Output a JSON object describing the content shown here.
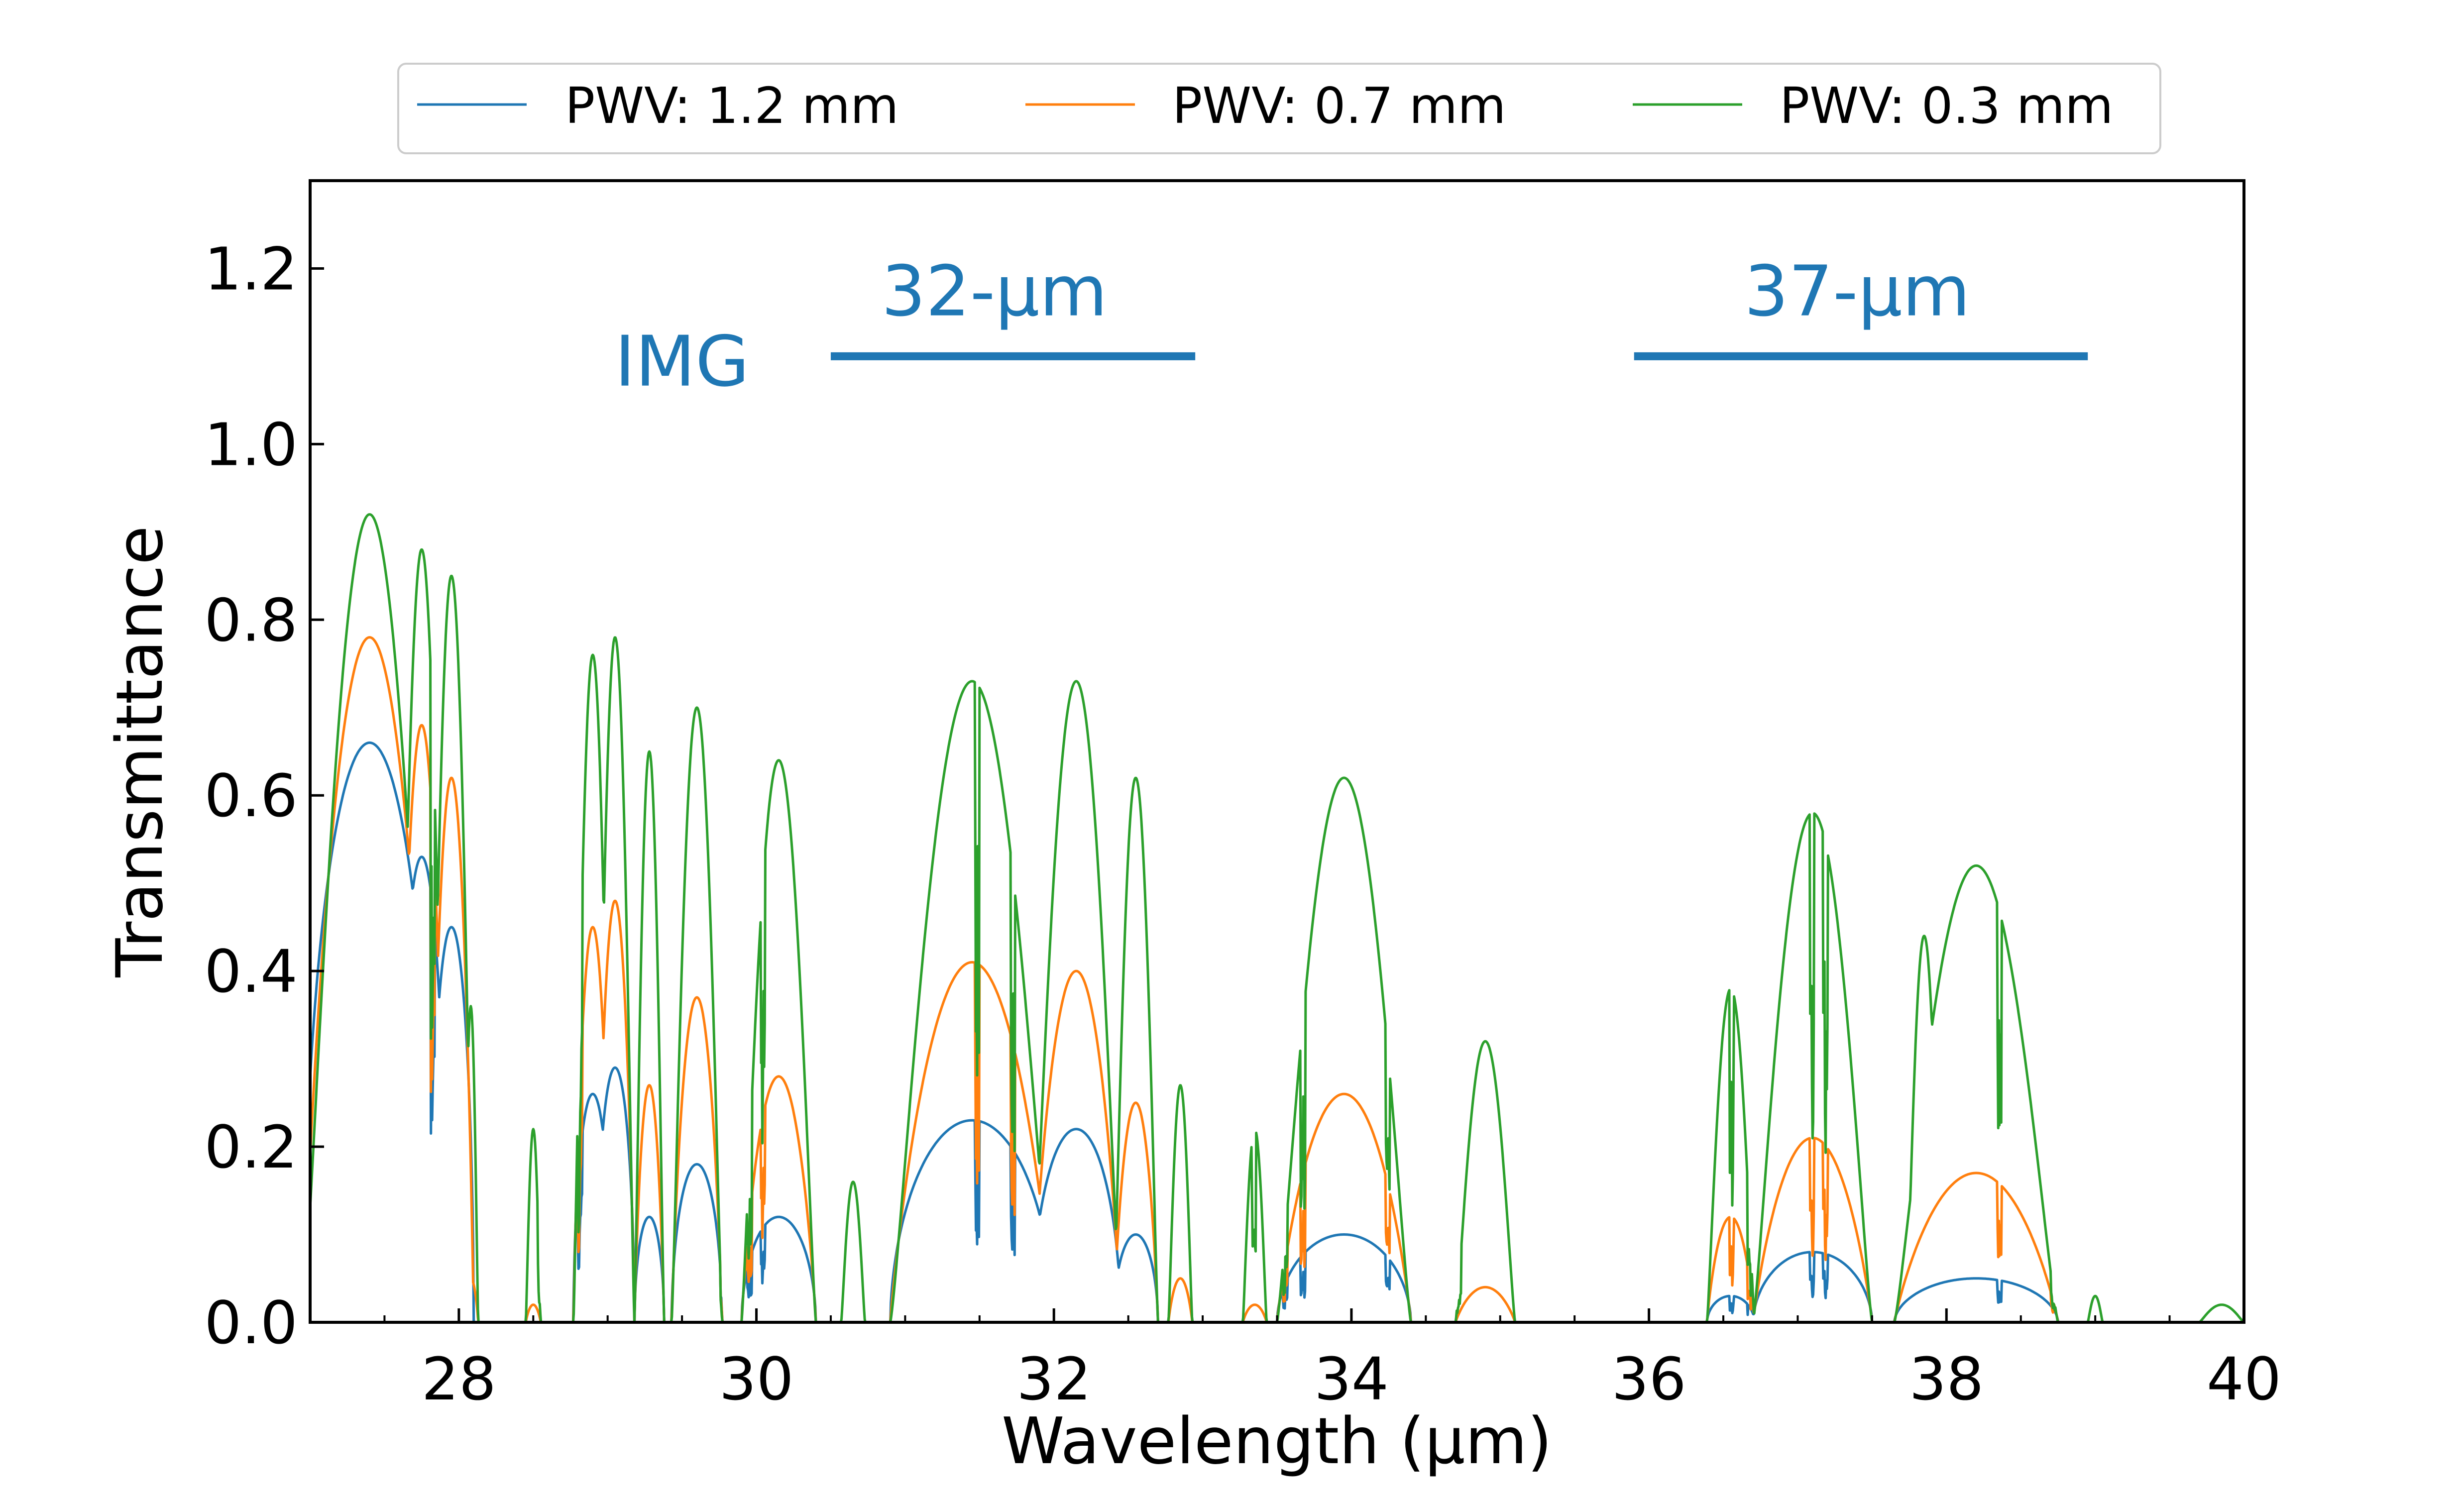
{
  "colors": {
    "pwv_1_2": "#1f77b4",
    "pwv_0_7": "#ff7f0e",
    "pwv_0_3": "#2ca02c",
    "band": "#1f77b4",
    "axis": "#000000",
    "legend_border": "#cccccc"
  },
  "legend": {
    "items": [
      "PWV: 1.2 mm",
      "PWV: 0.7 mm",
      "PWV: 0.3 mm"
    ]
  },
  "chart_data": {
    "type": "line",
    "xlabel": "Wavelength (µm)",
    "ylabel": "Transmittance",
    "xlim": [
      27.0,
      40.0
    ],
    "ylim": [
      0.0,
      1.3
    ],
    "xticks": [
      28,
      30,
      32,
      34,
      36,
      38,
      40
    ],
    "xtick_labels": [
      "28",
      "30",
      "32",
      "34",
      "36",
      "38",
      "40"
    ],
    "yticks": [
      0.0,
      0.2,
      0.4,
      0.6,
      0.8,
      1.0,
      1.2
    ],
    "ytick_labels": [
      "0.0",
      "0.2",
      "0.4",
      "0.6",
      "0.8",
      "1.0",
      "1.2"
    ],
    "grid": false,
    "legend_position": "top-center-outside",
    "annotations": [
      {
        "text": "IMG",
        "x": 29.5,
        "y": 1.095
      },
      {
        "text": "32-µm",
        "x": 31.6,
        "y": 1.175
      },
      {
        "text": "37-µm",
        "x": 37.4,
        "y": 1.175
      }
    ],
    "bands": [
      {
        "name": "32-µm",
        "x_start": 30.5,
        "x_end": 32.95,
        "y": 1.1
      },
      {
        "name": "37-µm",
        "x_start": 35.9,
        "x_end": 38.95,
        "y": 1.1
      }
    ],
    "windows": [
      {
        "center": 27.4,
        "half_width": 0.45,
        "peaks": [
          0.66,
          0.78,
          0.92
        ]
      },
      {
        "center": 27.75,
        "half_width": 0.17,
        "peaks": [
          0.53,
          0.68,
          0.88
        ]
      },
      {
        "center": 27.95,
        "half_width": 0.15,
        "peaks": [
          0.45,
          0.62,
          0.85
        ]
      },
      {
        "center": 28.08,
        "half_width": 0.05,
        "peaks": [
          0.0,
          0.05,
          0.36
        ]
      },
      {
        "center": 28.5,
        "half_width": 0.05,
        "peaks": [
          0.0,
          0.02,
          0.22
        ]
      },
      {
        "center": 28.9,
        "half_width": 0.13,
        "peaks": [
          0.26,
          0.45,
          0.76
        ]
      },
      {
        "center": 29.05,
        "half_width": 0.13,
        "peaks": [
          0.29,
          0.48,
          0.78
        ]
      },
      {
        "center": 29.28,
        "half_width": 0.1,
        "peaks": [
          0.12,
          0.27,
          0.65
        ]
      },
      {
        "center": 29.6,
        "half_width": 0.17,
        "peaks": [
          0.18,
          0.37,
          0.7
        ]
      },
      {
        "center": 30.15,
        "half_width": 0.25,
        "peaks": [
          0.12,
          0.28,
          0.64
        ]
      },
      {
        "center": 30.65,
        "half_width": 0.08,
        "peaks": [
          0.0,
          0.0,
          0.16
        ]
      },
      {
        "center": 31.45,
        "half_width": 0.55,
        "peaks": [
          0.23,
          0.41,
          0.73
        ]
      },
      {
        "center": 32.15,
        "half_width": 0.3,
        "peaks": [
          0.22,
          0.4,
          0.73
        ]
      },
      {
        "center": 32.55,
        "half_width": 0.15,
        "peaks": [
          0.1,
          0.25,
          0.62
        ]
      },
      {
        "center": 32.85,
        "half_width": 0.08,
        "peaks": [
          0.0,
          0.05,
          0.27
        ]
      },
      {
        "center": 33.35,
        "half_width": 0.08,
        "peaks": [
          0.0,
          0.02,
          0.22
        ]
      },
      {
        "center": 33.95,
        "half_width": 0.45,
        "peaks": [
          0.1,
          0.26,
          0.62
        ]
      },
      {
        "center": 34.9,
        "half_width": 0.2,
        "peaks": [
          0.0,
          0.04,
          0.32
        ]
      },
      {
        "center": 36.55,
        "half_width": 0.16,
        "peaks": [
          0.03,
          0.12,
          0.38
        ]
      },
      {
        "center": 37.1,
        "half_width": 0.4,
        "peaks": [
          0.08,
          0.21,
          0.58
        ]
      },
      {
        "center": 37.85,
        "half_width": 0.12,
        "peaks": [
          0.01,
          0.1,
          0.44
        ]
      },
      {
        "center": 38.2,
        "half_width": 0.55,
        "peaks": [
          0.05,
          0.17,
          0.52
        ]
      },
      {
        "center": 39.0,
        "half_width": 0.05,
        "peaks": [
          0.0,
          0.0,
          0.03
        ]
      },
      {
        "center": 39.85,
        "half_width": 0.15,
        "peaks": [
          0.0,
          0.0,
          0.02
        ]
      }
    ],
    "series": [
      {
        "name": "PWV: 1.2 mm",
        "pwv_mm": 1.2,
        "windows_peak_index": 0
      },
      {
        "name": "PWV: 0.7 mm",
        "pwv_mm": 0.7,
        "windows_peak_index": 1
      },
      {
        "name": "PWV: 0.3 mm",
        "pwv_mm": 0.3,
        "windows_peak_index": 2
      }
    ]
  }
}
